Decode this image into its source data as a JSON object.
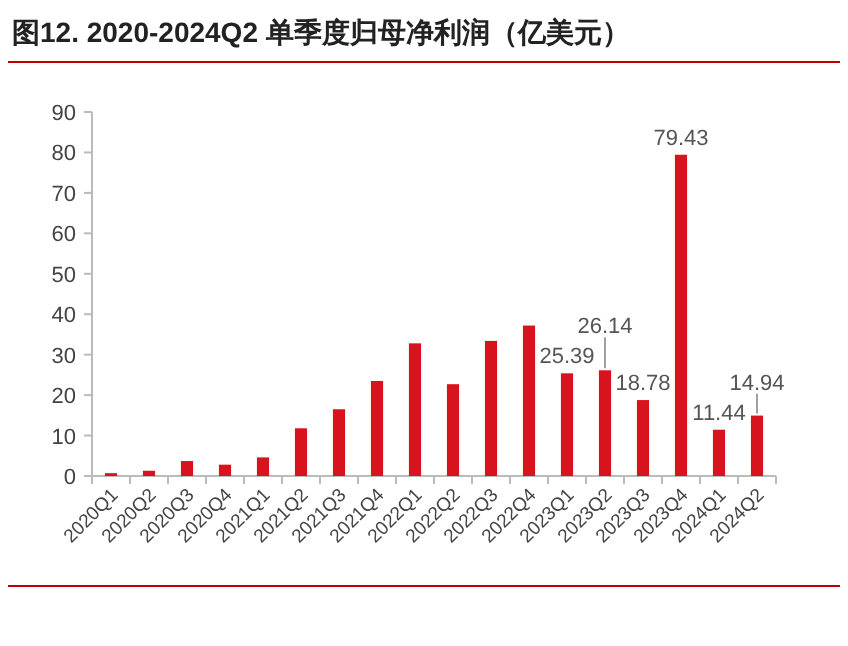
{
  "chart_data": {
    "type": "bar",
    "title": "图12. 2020-2024Q2 单季度归母净利润（亿美元）",
    "categories": [
      "2020Q1",
      "2020Q2",
      "2020Q3",
      "2020Q4",
      "2021Q1",
      "2021Q2",
      "2021Q3",
      "2021Q4",
      "2022Q1",
      "2022Q2",
      "2022Q3",
      "2022Q4",
      "2023Q1",
      "2023Q2",
      "2023Q3",
      "2023Q4",
      "2024Q1",
      "2024Q2"
    ],
    "values": [
      0.7,
      1.3,
      3.7,
      2.8,
      4.6,
      11.8,
      16.5,
      23.5,
      32.8,
      22.7,
      33.4,
      37.2,
      25.39,
      26.14,
      18.78,
      79.43,
      11.44,
      14.94
    ],
    "value_labels": [
      null,
      null,
      null,
      null,
      null,
      null,
      null,
      null,
      null,
      null,
      null,
      null,
      "25.39",
      "26.14",
      "18.78",
      "79.43",
      "11.44",
      "14.94"
    ],
    "color": "#d7141e",
    "ylim": [
      0,
      90
    ],
    "yticks": [
      0,
      10,
      20,
      30,
      40,
      50,
      60,
      70,
      80,
      90
    ],
    "grid": false
  }
}
